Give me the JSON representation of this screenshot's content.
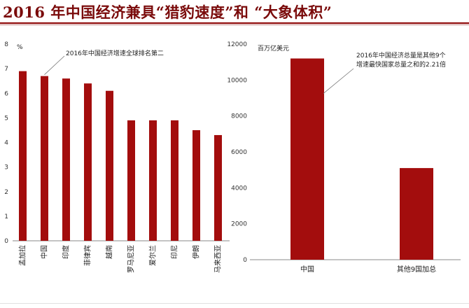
{
  "title": "2016 年中国经济兼具“猎豹速度”和 “大象体积”",
  "chart_data": [
    {
      "type": "bar",
      "ylabel": "%",
      "ylim": [
        0,
        8
      ],
      "yticks": [
        "0",
        "1",
        "2",
        "3",
        "4",
        "5",
        "6",
        "7",
        "8"
      ],
      "categories": [
        "孟加拉",
        "中国",
        "印度",
        "菲律宾",
        "越南",
        "罗马尼亚",
        "爱尔兰",
        "印尼",
        "伊朗",
        "马来西亚"
      ],
      "values": [
        6.9,
        6.7,
        6.6,
        6.4,
        6.1,
        4.9,
        4.9,
        4.9,
        4.5,
        4.3
      ],
      "color": "#a30d0d",
      "annotation": "2016年中国经济增速全球排名第二"
    },
    {
      "type": "bar",
      "ylabel": "百万亿美元",
      "ylim": [
        0,
        12000
      ],
      "yticks": [
        "0",
        "2000",
        "4000",
        "6000",
        "8000",
        "10000",
        "12000"
      ],
      "categories": [
        "中国",
        "其他9国加总"
      ],
      "values": [
        11200,
        5100
      ],
      "color": "#a30d0d",
      "annotation_lines": [
        "2016年中国经济总量是其他9个",
        "增速最快国家总量之和的2.21倍"
      ]
    }
  ]
}
